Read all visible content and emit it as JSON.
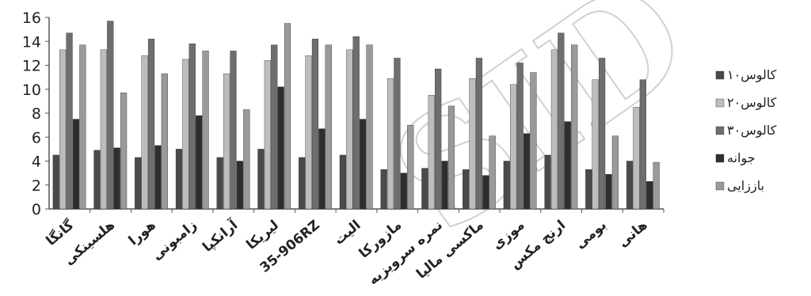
{
  "chart_data": {
    "type": "bar",
    "title": "",
    "xlabel": "",
    "ylabel": "",
    "ylim": [
      0,
      16
    ],
    "yticks": [
      0,
      2,
      4,
      6,
      8,
      10,
      12,
      14,
      16
    ],
    "grid": false,
    "legend_position": "right",
    "categories": [
      "گانگا",
      "هلسینکی",
      "هورا",
      "زامبونی",
      "آرانکپا",
      "لیریکا",
      "35-906RZ",
      "الیت",
      "مازورکا",
      "نمره سرویزیه",
      "ماکسی مالیا",
      "موزی",
      "ارنج مکس",
      "بومی",
      "هانی"
    ],
    "series": [
      {
        "name": "کالوس۱۰",
        "color": "#4a4a4a",
        "values": [
          4.5,
          4.9,
          4.3,
          5.0,
          4.3,
          5.0,
          4.3,
          4.5,
          3.3,
          3.4,
          3.3,
          4.0,
          4.5,
          3.3,
          4.0
        ]
      },
      {
        "name": "کالوس۲۰",
        "color": "#bdbdbd",
        "values": [
          13.3,
          13.3,
          12.8,
          12.5,
          11.3,
          12.4,
          12.8,
          13.3,
          10.9,
          9.5,
          10.9,
          10.4,
          13.3,
          10.8,
          8.5
        ]
      },
      {
        "name": "کالوس۳۰",
        "color": "#6e6e6e",
        "values": [
          14.7,
          15.7,
          14.2,
          13.8,
          13.2,
          13.7,
          14.2,
          14.4,
          12.6,
          11.7,
          12.6,
          12.2,
          14.7,
          12.6,
          10.8
        ]
      },
      {
        "name": "جوانه",
        "color": "#2e2e2e",
        "values": [
          7.5,
          5.1,
          5.3,
          7.8,
          4.0,
          10.2,
          6.7,
          7.5,
          3.0,
          4.0,
          2.8,
          6.3,
          7.3,
          2.9,
          2.3
        ]
      },
      {
        "name": "باززایی",
        "color": "#9a9a9a",
        "values": [
          13.7,
          9.7,
          11.3,
          13.2,
          8.3,
          15.5,
          13.7,
          13.7,
          7.0,
          8.6,
          6.1,
          11.4,
          13.7,
          6.1,
          3.9
        ]
      }
    ]
  }
}
